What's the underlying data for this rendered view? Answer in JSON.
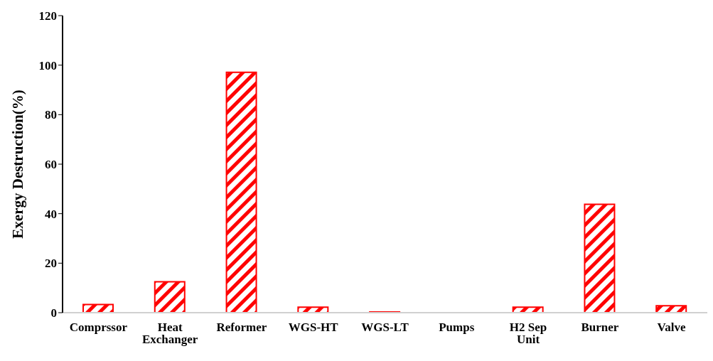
{
  "chart_data": {
    "type": "bar",
    "ylabel": "Exergy Destruction(%)",
    "categories": [
      "Comprssor",
      "Heat Exchanger",
      "Reformer",
      "WGS-HT",
      "WGS-LT",
      "Pumps",
      "H2 Sep Unit",
      "Burner",
      "Valve"
    ],
    "values": [
      3.3,
      12.5,
      97.1,
      2.2,
      0.3,
      0,
      2.2,
      43.8,
      2.8
    ],
    "color": "#ff0000",
    "ylim": [
      0,
      120
    ],
    "yticks": [
      0,
      20,
      40,
      60,
      80,
      100,
      120
    ],
    "grid": false,
    "legend": false
  }
}
